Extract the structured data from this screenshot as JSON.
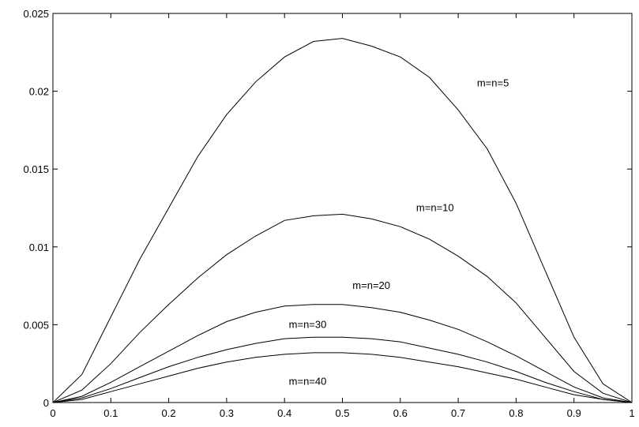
{
  "chart_data": {
    "type": "line",
    "title": "",
    "xlabel": "",
    "ylabel": "",
    "xlim": [
      0,
      1
    ],
    "ylim": [
      0,
      0.025
    ],
    "grid": false,
    "x_ticks": [
      "0",
      "0.1",
      "0.2",
      "0.3",
      "0.4",
      "0.5",
      "0.6",
      "0.7",
      "0.8",
      "0.9",
      "1"
    ],
    "y_ticks": [
      "0",
      "0.005",
      "0.01",
      "0.015",
      "0.02",
      "0.025"
    ],
    "x": [
      0,
      0.05,
      0.1,
      0.15,
      0.2,
      0.25,
      0.3,
      0.35,
      0.4,
      0.45,
      0.5,
      0.55,
      0.6,
      0.65,
      0.7,
      0.75,
      0.8,
      0.85,
      0.9,
      0.95,
      1
    ],
    "series": [
      {
        "name": "m=n=5",
        "values": [
          0,
          0.0018,
          0.0055,
          0.0092,
          0.0125,
          0.0158,
          0.0185,
          0.0206,
          0.0222,
          0.0232,
          0.0234,
          0.0229,
          0.0222,
          0.0209,
          0.0188,
          0.0163,
          0.0128,
          0.0085,
          0.0042,
          0.0012,
          0
        ]
      },
      {
        "name": "m=n=10",
        "values": [
          0,
          0.0008,
          0.0025,
          0.0045,
          0.0063,
          0.008,
          0.0095,
          0.0107,
          0.0117,
          0.012,
          0.0121,
          0.0118,
          0.0113,
          0.0105,
          0.0094,
          0.0081,
          0.0064,
          0.0042,
          0.002,
          0.0006,
          0
        ]
      },
      {
        "name": "m=n=20",
        "values": [
          0,
          0.0004,
          0.0013,
          0.0023,
          0.0033,
          0.0043,
          0.0052,
          0.0058,
          0.0062,
          0.0063,
          0.0063,
          0.0061,
          0.0058,
          0.0053,
          0.0047,
          0.0039,
          0.003,
          0.002,
          0.001,
          0.0003,
          0
        ]
      },
      {
        "name": "m=n=30",
        "values": [
          0,
          0.0003,
          0.0009,
          0.0016,
          0.0023,
          0.0029,
          0.0034,
          0.0038,
          0.0041,
          0.0042,
          0.0042,
          0.0041,
          0.0039,
          0.0035,
          0.0031,
          0.0026,
          0.002,
          0.0013,
          0.0007,
          0.0002,
          0
        ]
      },
      {
        "name": "m=n=40",
        "values": [
          0,
          0.0002,
          0.0007,
          0.0012,
          0.0017,
          0.0022,
          0.0026,
          0.0029,
          0.0031,
          0.0032,
          0.0032,
          0.0031,
          0.0029,
          0.0026,
          0.0023,
          0.0019,
          0.0015,
          0.001,
          0.0005,
          0.0002,
          0
        ]
      }
    ],
    "annotations": [
      {
        "text": "m=n=5",
        "series": "m=n=5",
        "at": [
          0.76,
          0.0203
        ]
      },
      {
        "text": "m=n=10",
        "series": "m=n=10",
        "at": [
          0.66,
          0.0123
        ]
      },
      {
        "text": "m=n=20",
        "series": "m=n=20",
        "at": [
          0.55,
          0.0073
        ]
      },
      {
        "text": "m=n=30",
        "series": "m=n=30",
        "at": [
          0.44,
          0.0048
        ]
      },
      {
        "text": "m=n=40",
        "series": "m=n=40",
        "at": [
          0.44,
          0.00115
        ]
      }
    ]
  }
}
